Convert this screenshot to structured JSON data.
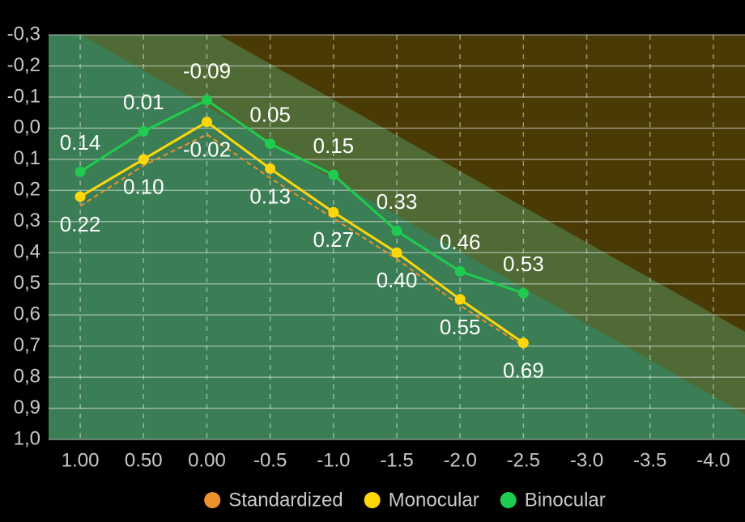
{
  "chart_data": {
    "type": "line",
    "x": [
      1.0,
      0.5,
      0.0,
      -0.5,
      -1.0,
      -1.5,
      -2.0,
      -2.5
    ],
    "xlim": [
      1.25,
      -4.25
    ],
    "xticks": [
      {
        "value": 1.0,
        "label": "1.00"
      },
      {
        "value": 0.5,
        "label": "0.50"
      },
      {
        "value": 0.0,
        "label": "0.00"
      },
      -0.5,
      {
        "value": -1.0,
        "label": "-1.0"
      },
      -1.5,
      {
        "value": -2.0,
        "label": "-2.0"
      },
      -2.5,
      {
        "value": -3.0,
        "label": "-3.0"
      },
      -3.5,
      {
        "value": -4.0,
        "label": "-4.0"
      }
    ],
    "ylim": [
      1.0,
      -0.3
    ],
    "yticks": [
      {
        "value": -0.3,
        "label": "-0,3"
      },
      {
        "value": -0.2,
        "label": "-0,2"
      },
      {
        "value": -0.1,
        "label": "-0,1"
      },
      {
        "value": 0.0,
        "label": "0,0"
      },
      {
        "value": 0.1,
        "label": "0,1"
      },
      {
        "value": 0.2,
        "label": "0,2"
      },
      {
        "value": 0.3,
        "label": "0,3"
      },
      {
        "value": 0.4,
        "label": "0,4"
      },
      {
        "value": 0.5,
        "label": "0,5"
      },
      {
        "value": 0.6,
        "label": "0,6"
      },
      {
        "value": 0.7,
        "label": "0,7"
      },
      {
        "value": 0.8,
        "label": "0,8"
      },
      {
        "value": 0.9,
        "label": "0,9"
      },
      {
        "value": 1.0,
        "label": "1,0"
      }
    ],
    "grid": true,
    "legend": "bottom",
    "series": [
      {
        "name": "Standardized",
        "color": "#f0922c",
        "dashed": true,
        "markers": false,
        "values": [
          0.25,
          0.12,
          0.02,
          0.16,
          0.29,
          0.42,
          0.57,
          0.7
        ]
      },
      {
        "name": "Monocular",
        "color": "#ffd60a",
        "dashed": false,
        "markers": true,
        "label_position": "below",
        "values": [
          0.22,
          0.1,
          -0.02,
          0.13,
          0.27,
          0.4,
          0.55,
          0.69
        ],
        "value_labels": [
          "0.22",
          "0.10",
          "-0.02",
          "0.13",
          "0.27",
          "0.40",
          "0.55",
          "0.69"
        ]
      },
      {
        "name": "Binocular",
        "color": "#1fcc4f",
        "dashed": false,
        "markers": true,
        "label_position": "above",
        "values": [
          0.14,
          0.01,
          -0.09,
          0.05,
          0.15,
          0.33,
          0.46,
          0.53
        ],
        "value_labels": [
          "0.14",
          "0.01",
          "-0.09",
          "0.05",
          "0.15",
          "0.33",
          "0.46",
          "0.53"
        ]
      }
    ]
  }
}
